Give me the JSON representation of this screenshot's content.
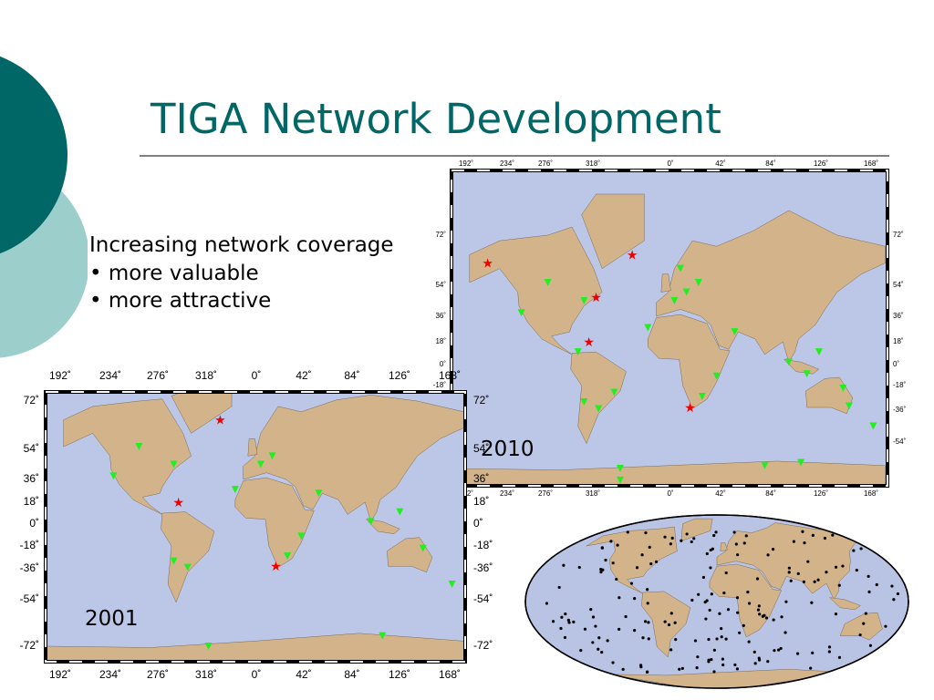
{
  "header": {
    "title": "TIGA Network Development"
  },
  "bullets": {
    "heading": "Increasing network coverage",
    "items": [
      "• more valuable",
      "• more attractive"
    ]
  },
  "maps": [
    {
      "label": "2010",
      "x_ticks": [
        "192˚",
        "234˚",
        "276˚",
        "318˚",
        "0˚",
        "42˚",
        "84˚",
        "126˚",
        "168˚"
      ],
      "y_ticks": [
        "72˚",
        "54˚",
        "36˚",
        "18˚",
        "0˚",
        "-18˚",
        "-36˚",
        "-54˚"
      ]
    },
    {
      "label": "2001",
      "x_ticks": [
        "192˚",
        "234˚",
        "276˚",
        "318˚",
        "0˚",
        "42˚",
        "84˚",
        "126˚",
        "168˚"
      ],
      "y_ticks": [
        "72˚",
        "54˚",
        "36˚",
        "18˚",
        "0˚",
        "-18˚",
        "-36˚",
        "-54˚",
        "-72˚"
      ]
    }
  ]
}
